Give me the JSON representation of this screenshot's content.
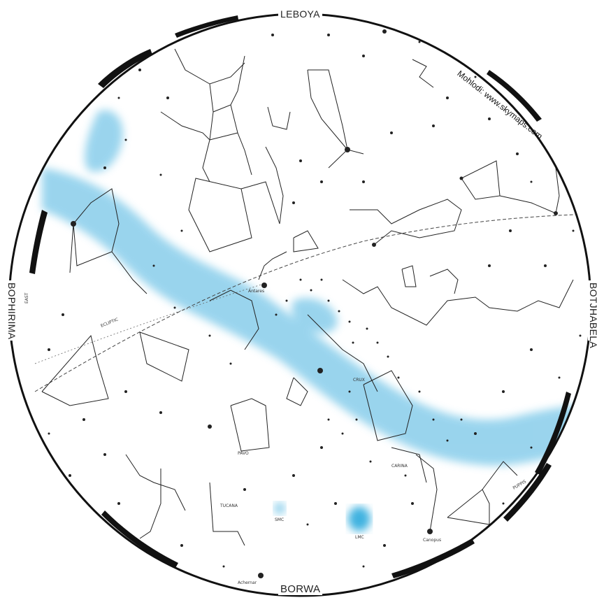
{
  "directions": {
    "north": "LEBOYA",
    "south": "BORWA",
    "west": "BOPHIRIMA",
    "east": "BOTJHABELA"
  },
  "credit": "Mohlodi: www.skymaps.com",
  "labels": {
    "east_marker": "EAST",
    "ecliptic": "ECLIPTIC",
    "crux": "CRUX",
    "carina": "CARINA",
    "pavo": "PAVO",
    "tucana": "TUCANA",
    "puppis": "PUPPIS",
    "canopus": "Canopus",
    "lmc": "LMC",
    "smc": "SMC",
    "antares": "Antares",
    "achernar": "Achernar"
  },
  "colors": {
    "milky_way": "#8fd0ec",
    "horizon_ring": "#111111",
    "constellation_lines": "#222222"
  }
}
